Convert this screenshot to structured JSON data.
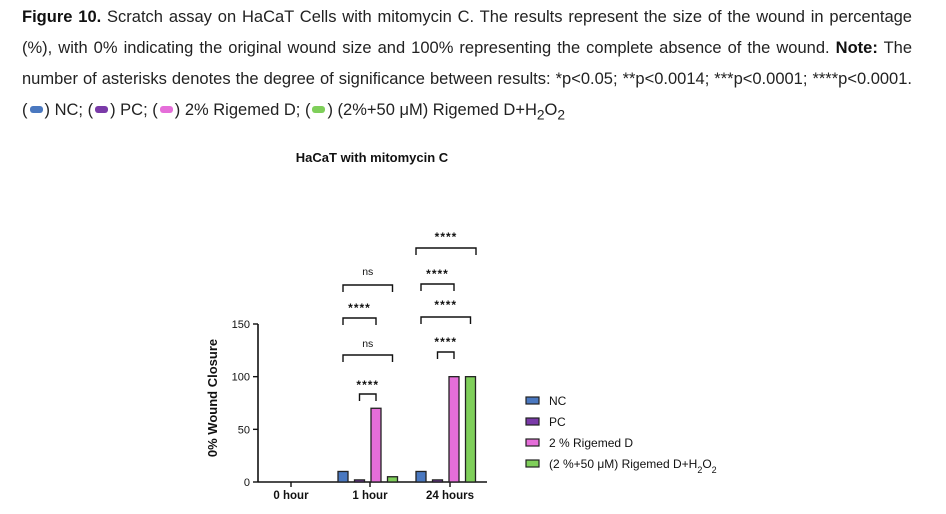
{
  "caption": {
    "figure_label": "Figure 10.",
    "line1": " Scratch assay on HaCaT Cells with mitomycin C. The results represent the size of the wound in percentage (%), with 0% indicating the original wound size and 100% representing the complete absence of the wound. ",
    "note_label": "Note:",
    "line2": " The number of asterisks denotes the degree of significance between results: *p<0.05; **p<0.0014; ***p<0.0001; ****p<0.0001. (",
    "nc": ") NC; (",
    "pc": ") PC; (",
    "rig": ") 2% Rigemed D; (",
    "comb_pre": ") (2%+50 μM) Rigemed D+H",
    "sub2a": "2",
    "o": "O",
    "sub2b": "2"
  },
  "colors": {
    "NC": "#4a78c0",
    "PC": "#7a3aa8",
    "Rigemed": "#e56ed9",
    "Combo": "#7fcf5a",
    "border": "#222222"
  },
  "chart_data": {
    "type": "bar",
    "title": "HaCaT with mitomycin C",
    "ylabel": "0% Wound Closure",
    "xlabel": "",
    "ylim": [
      0,
      150
    ],
    "yticks": [
      0,
      50,
      100,
      150
    ],
    "categories": [
      "0 hour",
      "1 hour",
      "24 hours"
    ],
    "series": [
      {
        "name": "NC",
        "values": [
          0,
          10,
          10
        ]
      },
      {
        "name": "PC",
        "values": [
          0,
          2,
          2
        ]
      },
      {
        "name": "2 % Rigemed D",
        "values": [
          0,
          70,
          100
        ]
      },
      {
        "name": "(2 %+50 μM) Rigemed D+H2O2",
        "values": [
          0,
          5,
          100
        ]
      }
    ],
    "legend": {
      "position": "right",
      "entries": [
        "NC",
        "PC",
        "2 % Rigemed D",
        "(2 %+50 μM) Rigemed D+H"
      ],
      "combo_sub1": "2",
      "combo_o": "O",
      "combo_sub2": "2"
    },
    "significance": [
      {
        "category": "1 hour",
        "label": "****"
      },
      {
        "category": "1 hour",
        "label": "ns"
      },
      {
        "category": "1 hour",
        "label": "****"
      },
      {
        "category": "1 hour",
        "label": "ns"
      },
      {
        "category": "24 hours",
        "label": "****"
      },
      {
        "category": "24 hours",
        "label": "****"
      },
      {
        "category": "24 hours",
        "label": "****"
      },
      {
        "category": "24 hours",
        "label": "****"
      }
    ]
  }
}
